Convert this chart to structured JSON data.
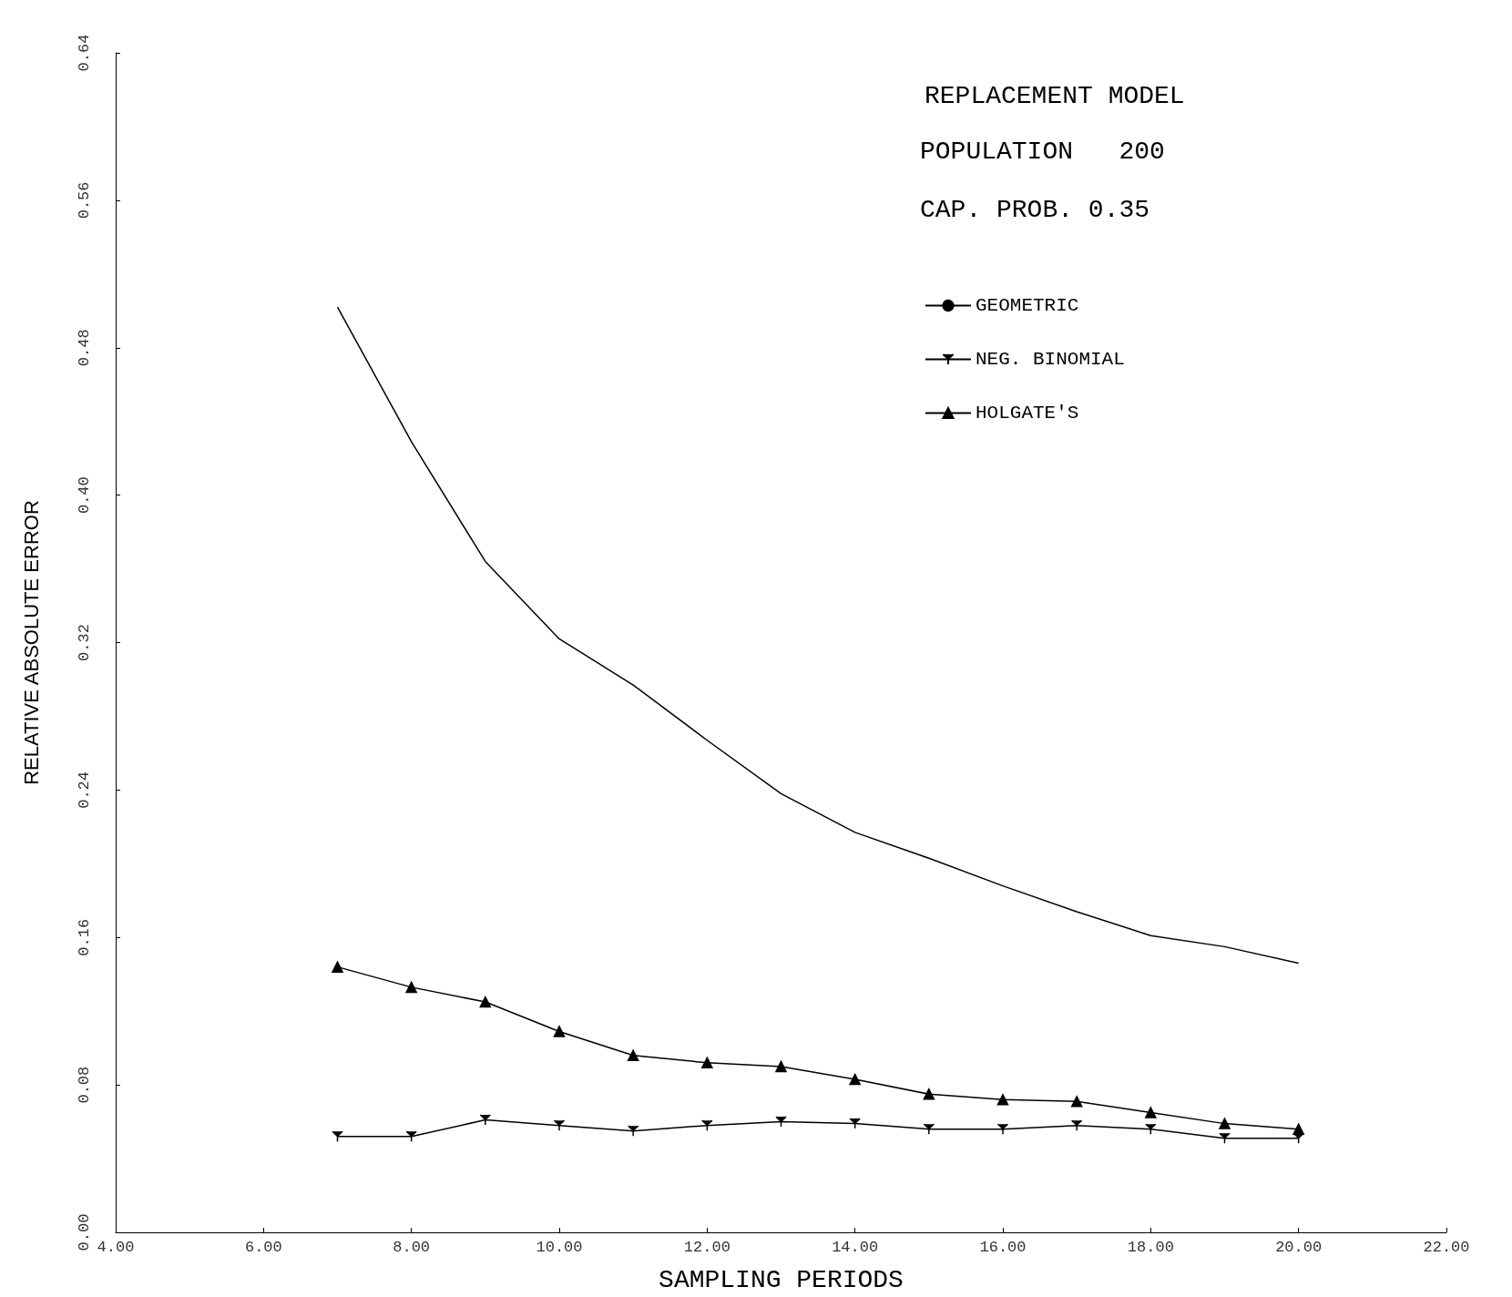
{
  "chart_data": {
    "type": "line",
    "title": "REPLACEMENT MODEL",
    "annotations": [
      "POPULATION   200",
      "CAP. PROB. 0.35"
    ],
    "xlabel": "SAMPLING PERIODS",
    "ylabel": "RELATIVE ABSOLUTE ERROR",
    "x": [
      7,
      8,
      9,
      10,
      11,
      12,
      13,
      14,
      15,
      16,
      17,
      18,
      19,
      20
    ],
    "series": [
      {
        "name": "GEOMETRIC",
        "color": "#000000",
        "marker": "none",
        "values": [
          0.502,
          0.429,
          0.364,
          0.322,
          0.297,
          0.267,
          0.238,
          0.217,
          0.203,
          0.188,
          0.174,
          0.161,
          0.155,
          0.146
        ]
      },
      {
        "name": "NEG. BINOMIAL",
        "color": "#000000",
        "marker": "cross",
        "values": [
          0.052,
          0.052,
          0.061,
          0.058,
          0.055,
          0.058,
          0.06,
          0.059,
          0.056,
          0.056,
          0.058,
          0.056,
          0.051,
          0.051
        ]
      },
      {
        "name": "HOLGATE'S",
        "color": "#000000",
        "marker": "triangle",
        "values": [
          0.144,
          0.133,
          0.125,
          0.109,
          0.096,
          0.092,
          0.09,
          0.083,
          0.075,
          0.072,
          0.071,
          0.065,
          0.059,
          0.056
        ]
      }
    ],
    "xlim": [
      4,
      22
    ],
    "xticks": [
      {
        "value": 4,
        "label": "4.00"
      },
      {
        "value": 6,
        "label": "6.00"
      },
      {
        "value": 8,
        "label": "8.00"
      },
      {
        "value": 10,
        "label": "10.00"
      },
      {
        "value": 12,
        "label": "12.00"
      },
      {
        "value": 14,
        "label": "14.00"
      },
      {
        "value": 16,
        "label": "16.00"
      },
      {
        "value": 18,
        "label": "18.00"
      },
      {
        "value": 20,
        "label": "20.00"
      },
      {
        "value": 22,
        "label": "22.00"
      }
    ],
    "ylim": [
      0,
      0.64
    ],
    "yticks": [
      {
        "value": 0,
        "label": "0.00"
      },
      0.08,
      0.16,
      0.24,
      0.32,
      {
        "value": 0.4,
        "label": "0.40"
      },
      0.48,
      0.56,
      0.64
    ],
    "grid": false,
    "legend": "top right",
    "line_style": "solid"
  }
}
